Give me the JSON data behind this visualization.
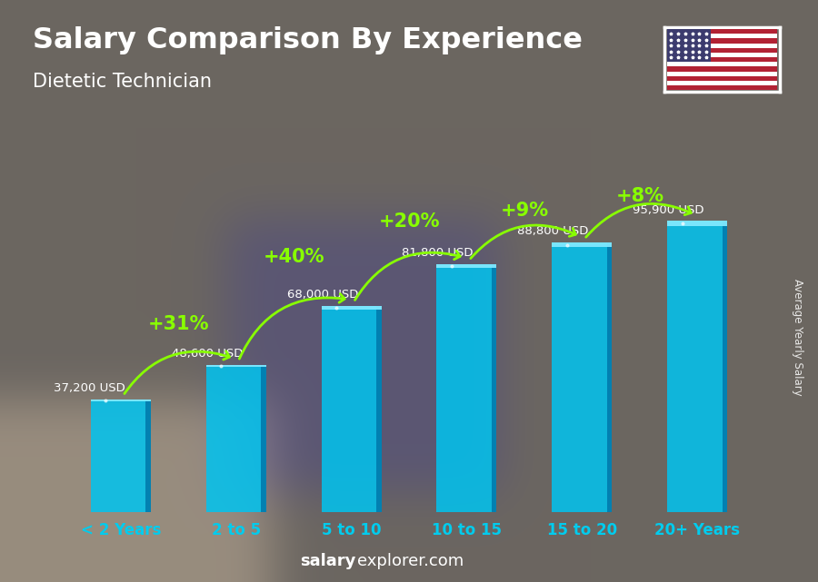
{
  "title": "Salary Comparison By Experience",
  "subtitle": "Dietetic Technician",
  "categories": [
    "< 2 Years",
    "2 to 5",
    "5 to 10",
    "10 to 15",
    "15 to 20",
    "20+ Years"
  ],
  "values": [
    37200,
    48600,
    68000,
    81800,
    88800,
    95900
  ],
  "labels": [
    "37,200 USD",
    "48,600 USD",
    "68,000 USD",
    "81,800 USD",
    "88,800 USD",
    "95,900 USD"
  ],
  "pct_changes": [
    null,
    "+31%",
    "+40%",
    "+20%",
    "+9%",
    "+8%"
  ],
  "bar_color_main": "#00C4F0",
  "bar_color_dark": "#0099BB",
  "bar_color_light": "#80E8FF",
  "bar_color_right": "#0077AA",
  "bg_color": "#4a5560",
  "title_color": "#FFFFFF",
  "subtitle_color": "#FFFFFF",
  "label_color": "#FFFFFF",
  "pct_color": "#88FF00",
  "arrow_color": "#88FF00",
  "tick_color": "#00CCEE",
  "footer_bold": "salary",
  "footer_normal": "explorer.com",
  "ylabel_text": "Average Yearly Salary",
  "ylim_max": 115000,
  "bar_alpha": 0.85
}
